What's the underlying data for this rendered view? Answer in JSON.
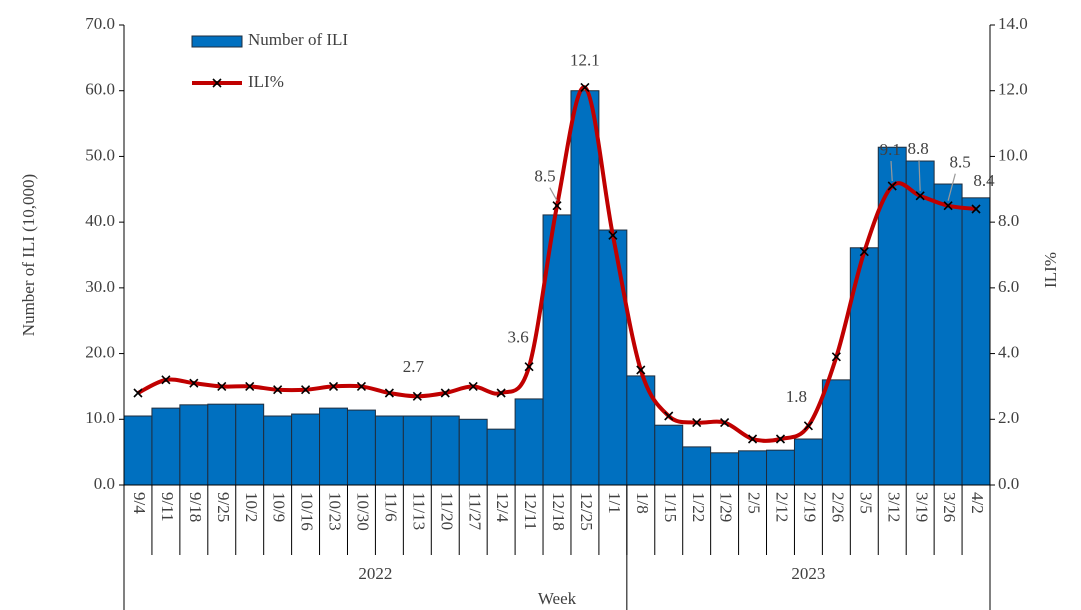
{
  "chart_data": {
    "type": "bar-line",
    "x_label": "Week",
    "y_label": "Number of ILI (10,000)",
    "y2_label": "ILI%",
    "categories": [
      "9/4",
      "9/11",
      "9/18",
      "9/25",
      "10/2",
      "10/9",
      "10/16",
      "10/23",
      "10/30",
      "11/6",
      "11/13",
      "11/20",
      "11/27",
      "12/4",
      "12/11",
      "12/18",
      "12/25",
      "1/1",
      "1/8",
      "1/15",
      "1/22",
      "1/29",
      "2/5",
      "2/12",
      "2/19",
      "2/26",
      "3/5",
      "3/12",
      "3/19",
      "3/26",
      "4/2"
    ],
    "groups": [
      {
        "label": "2022",
        "count": 18
      },
      {
        "label": "2023",
        "count": 13
      }
    ],
    "series": [
      {
        "name": "Number of ILI",
        "type": "bar",
        "color": "#0070C0",
        "values": [
          10.5,
          11.7,
          12.2,
          12.3,
          12.3,
          10.5,
          10.8,
          11.7,
          11.4,
          10.5,
          10.5,
          10.5,
          10.0,
          8.5,
          13.1,
          41.1,
          60.0,
          38.8,
          16.6,
          9.1,
          5.8,
          4.9,
          5.2,
          5.3,
          7.0,
          16.0,
          36.1,
          51.4,
          49.3,
          45.8,
          43.7
        ]
      },
      {
        "name": "ILI%",
        "type": "line",
        "axis": "y2",
        "color": "#C00000",
        "values": [
          2.8,
          3.2,
          3.1,
          3.0,
          3.0,
          2.9,
          2.9,
          3.0,
          3.0,
          2.8,
          2.7,
          2.8,
          3.0,
          2.8,
          3.6,
          8.5,
          12.1,
          7.6,
          3.5,
          2.1,
          1.9,
          1.9,
          1.4,
          1.4,
          1.8,
          3.9,
          7.1,
          9.1,
          8.8,
          8.5,
          8.4
        ],
        "value_labels": [
          null,
          null,
          null,
          null,
          null,
          null,
          null,
          null,
          null,
          null,
          "2.7",
          null,
          null,
          null,
          "3.6",
          "8.5",
          "12.1",
          null,
          null,
          null,
          null,
          null,
          null,
          null,
          "1.8",
          null,
          null,
          "9.1",
          "8.8",
          "8.5",
          "8.4"
        ]
      }
    ],
    "ylim": [
      0,
      70
    ],
    "yticks": [
      {
        "value": 0,
        "label": "0.0"
      },
      {
        "value": 10,
        "label": "10.0"
      },
      {
        "value": 20,
        "label": "20.0"
      },
      {
        "value": 30,
        "label": "30.0"
      },
      {
        "value": 40,
        "label": "40.0"
      },
      {
        "value": 50,
        "label": "50.0"
      },
      {
        "value": 60,
        "label": "60.0"
      },
      {
        "value": 70,
        "label": "70.0"
      }
    ],
    "y2lim": [
      0,
      14
    ],
    "y2ticks": [
      {
        "value": 0,
        "label": "0.0"
      },
      {
        "value": 2,
        "label": "2.0"
      },
      {
        "value": 4,
        "label": "4.0"
      },
      {
        "value": 6,
        "label": "6.0"
      },
      {
        "value": 8,
        "label": "8.0"
      },
      {
        "value": 10,
        "label": "10.0"
      },
      {
        "value": 12,
        "label": "12.0"
      },
      {
        "value": 14,
        "label": "14.0"
      }
    ],
    "legend": "upper left",
    "grid": false
  }
}
